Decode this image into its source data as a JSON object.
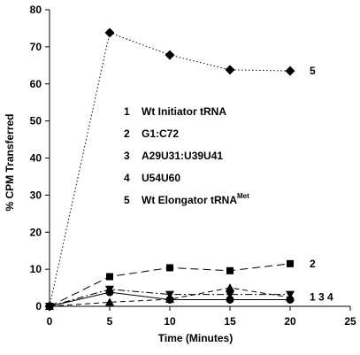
{
  "chart_data": {
    "type": "line",
    "xlabel": "Time (Minutes)",
    "ylabel": "% CPM Transferred",
    "xlim": [
      0,
      25
    ],
    "ylim": [
      0,
      80
    ],
    "xticks": [
      0,
      5,
      10,
      15,
      20,
      25
    ],
    "yticks": [
      0,
      10,
      20,
      30,
      40,
      50,
      60,
      70,
      80
    ],
    "grid": false,
    "legend_position": "center",
    "legend": [
      {
        "number": "1",
        "text": "Wt Initiator tRNA"
      },
      {
        "number": "2",
        "text": "G1:C72"
      },
      {
        "number": "3",
        "text": "A29U31:U39U41"
      },
      {
        "number": "4",
        "text": "U54U60"
      },
      {
        "number": "5",
        "text": "Wt Elongator tRNA",
        "superscript": "Met"
      }
    ],
    "series": [
      {
        "label": "1",
        "marker": "circle",
        "dash": "none",
        "x": [
          0,
          5,
          10,
          15,
          20
        ],
        "y": [
          0,
          3.8,
          1.8,
          1.8,
          1.8
        ]
      },
      {
        "label": "2",
        "marker": "square",
        "dash": "long-dash",
        "x": [
          0,
          5,
          10,
          15,
          20
        ],
        "y": [
          0,
          8,
          10.4,
          9.6,
          11.5
        ]
      },
      {
        "label": "3",
        "marker": "triangle-up",
        "dash": "dash",
        "x": [
          0,
          5,
          10,
          15,
          20
        ],
        "y": [
          0,
          1.1,
          1.9,
          5,
          2.4
        ]
      },
      {
        "label": "4",
        "marker": "triangle-down",
        "dash": "dash-dot",
        "x": [
          0,
          5,
          10,
          15,
          20
        ],
        "y": [
          0,
          4.6,
          3.2,
          3.2,
          3.2
        ]
      },
      {
        "label": "5",
        "marker": "diamond",
        "dash": "dotted",
        "x": [
          0,
          5,
          10,
          15,
          20
        ],
        "y": [
          0,
          73.8,
          67.8,
          63.8,
          63.5
        ]
      }
    ],
    "end_labels": [
      {
        "text": "5",
        "anchor_x": 20,
        "anchor_y": 63.5
      },
      {
        "text": "2",
        "anchor_x": 20,
        "anchor_y": 11.5
      },
      {
        "text": "1  3  4",
        "anchor_x": 20,
        "anchor_y": 2.5
      }
    ]
  }
}
